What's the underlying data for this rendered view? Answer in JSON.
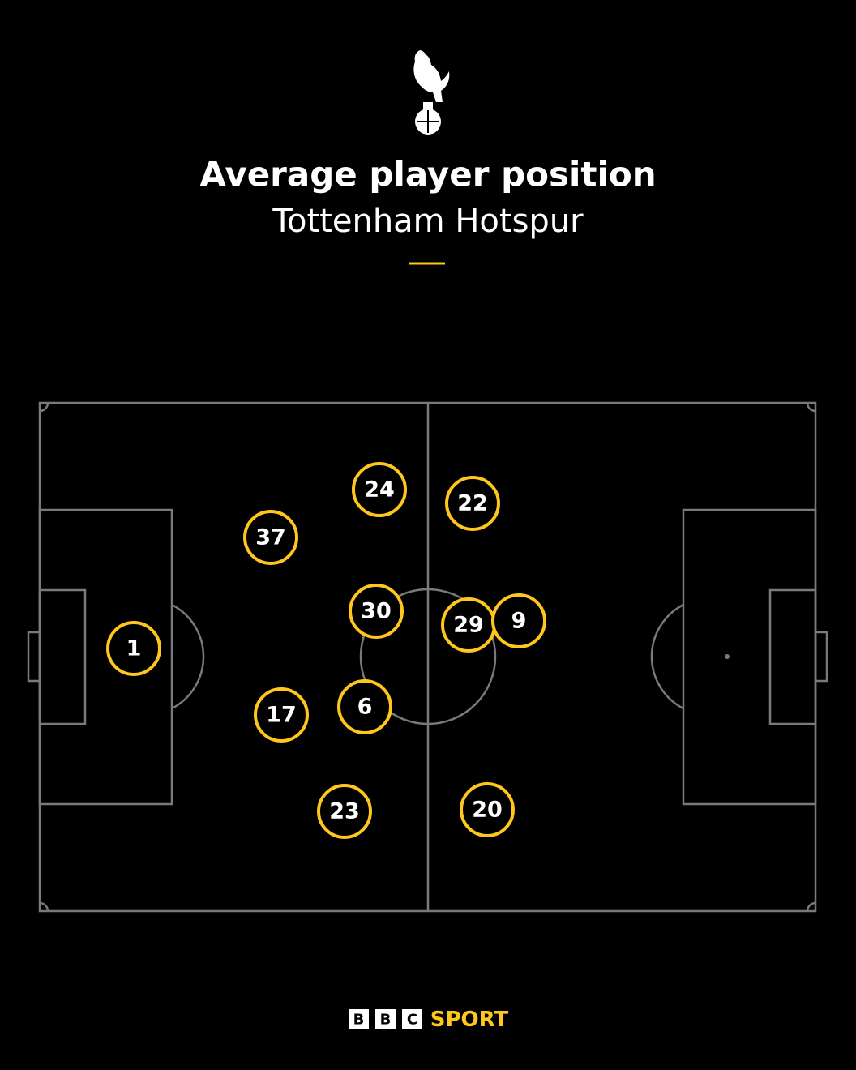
{
  "header": {
    "title": "Average player position",
    "subtitle": "Tottenham Hotspur"
  },
  "players": [
    {
      "label": "1"
    },
    {
      "label": "37"
    },
    {
      "label": "24"
    },
    {
      "label": "22"
    },
    {
      "label": "30"
    },
    {
      "label": "29"
    },
    {
      "label": "9"
    },
    {
      "label": "17"
    },
    {
      "label": "6"
    },
    {
      "label": "23"
    },
    {
      "label": "20"
    }
  ],
  "footer": {
    "logo_letters": [
      "B",
      "B",
      "C"
    ],
    "logo_word": "SPORT"
  }
}
